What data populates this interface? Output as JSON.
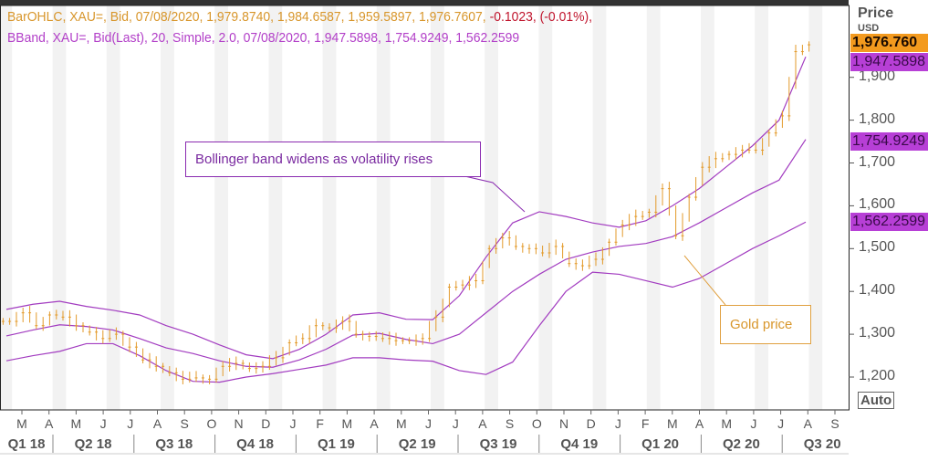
{
  "header": {
    "ohlc_legend": "BarOHLC, XAU=, Bid, 07/08/2020, 1,979.8740, 1,984.6587, 1,959.5897, 1,976.7607,",
    "ohlc_change": "-0.1023, (-0.01%),",
    "bband_legend": "BBand, XAU=, Bid(Last),  20, Simple, 2.0, 07/08/2020, 1,947.5898, 1,754.9249, 1,562.2599"
  },
  "axis": {
    "title": "Price",
    "unit": "USD",
    "auto_label": "Auto"
  },
  "tags": {
    "last": "1,976.760",
    "upper": "1,947.5898",
    "mid": "1,754.9249",
    "lower": "1,562.2599"
  },
  "colors": {
    "price": "#e39a2a",
    "band": "#a23cc0",
    "tag_price": "#f39a1e",
    "tag_band": "#b73fd6"
  },
  "annotations": {
    "band": "Bollinger band widens as volatility rises",
    "price": "Gold price"
  },
  "chart_data": {
    "type": "line",
    "title": "",
    "ylim": [
      1160,
      2000
    ],
    "yticks": [
      1200,
      1300,
      1400,
      1500,
      1600,
      1700,
      1800,
      1900
    ],
    "ytick_labels": [
      "1,200",
      "1,300",
      "1,400",
      "1,500",
      "1,600",
      "1,700",
      "1,800",
      "1,900"
    ],
    "months": [
      "M",
      "A",
      "M",
      "J",
      "J",
      "A",
      "S",
      "O",
      "N",
      "D",
      "J",
      "F",
      "M",
      "A",
      "M",
      "J",
      "J",
      "A",
      "S",
      "O",
      "N",
      "D",
      "J",
      "F",
      "M",
      "A",
      "M",
      "J",
      "J",
      "A",
      "S"
    ],
    "quarters": [
      "Q1 18",
      "Q2 18",
      "Q3 18",
      "Q4 18",
      "Q1 19",
      "Q2 19",
      "Q3 19",
      "Q4 19",
      "Q1 20",
      "Q2 20",
      "Q3 20"
    ],
    "x_range": "Feb 2018 - Aug 2020",
    "price_halfmonthly": [
      1330,
      1350,
      1320,
      1345,
      1340,
      1320,
      1305,
      1290,
      1300,
      1270,
      1240,
      1225,
      1210,
      1195,
      1198,
      1195,
      1225,
      1232,
      1220,
      1225,
      1245,
      1280,
      1290,
      1320,
      1315,
      1330,
      1300,
      1295,
      1290,
      1285,
      1285,
      1290,
      1340,
      1410,
      1415,
      1425,
      1500,
      1525,
      1505,
      1500,
      1490,
      1505,
      1465,
      1460,
      1475,
      1515,
      1555,
      1575,
      1585,
      1640,
      1530,
      1620,
      1690,
      1710,
      1720,
      1730,
      1730,
      1770,
      1810,
      1960,
      1976
    ],
    "series": [
      {
        "name": "Upper band",
        "values": [
          1358,
          1370,
          1377,
          1365,
          1356,
          1345,
          1320,
          1300,
          1275,
          1252,
          1243,
          1265,
          1300,
          1345,
          1350,
          1335,
          1334,
          1390,
          1480,
          1560,
          1586,
          1575,
          1560,
          1550,
          1565,
          1600,
          1640,
          1690,
          1740,
          1800,
          1948
        ]
      },
      {
        "name": "Middle band",
        "values": [
          1296,
          1310,
          1322,
          1318,
          1310,
          1290,
          1268,
          1255,
          1238,
          1225,
          1223,
          1240,
          1265,
          1298,
          1302,
          1288,
          1278,
          1300,
          1350,
          1400,
          1440,
          1475,
          1492,
          1505,
          1512,
          1528,
          1560,
          1595,
          1630,
          1660,
          1755
        ]
      },
      {
        "name": "Lower band",
        "values": [
          1238,
          1250,
          1260,
          1278,
          1278,
          1250,
          1215,
          1190,
          1188,
          1200,
          1208,
          1218,
          1228,
          1245,
          1245,
          1240,
          1237,
          1215,
          1206,
          1235,
          1320,
          1400,
          1445,
          1440,
          1425,
          1410,
          1430,
          1465,
          1500,
          1530,
          1562
        ]
      }
    ]
  }
}
